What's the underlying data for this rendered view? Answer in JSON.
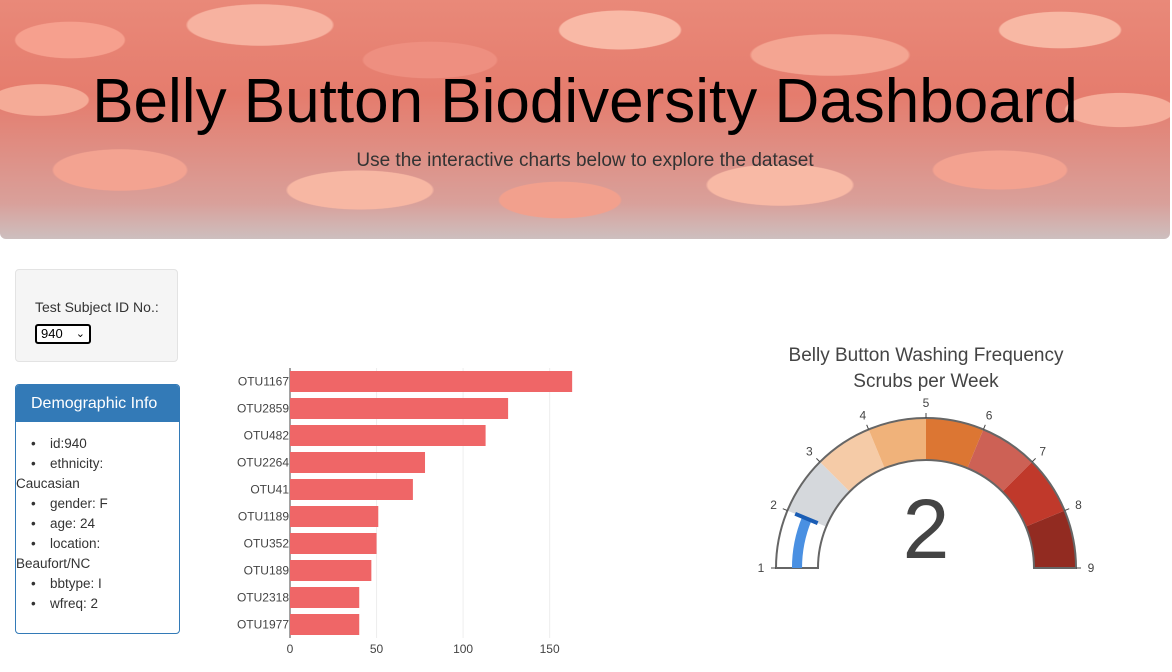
{
  "header": {
    "title": "Belly Button Biodiversity Dashboard",
    "subtitle": "Use the interactive charts below to explore the dataset"
  },
  "selector": {
    "label": "Test Subject ID No.:",
    "selected": "940"
  },
  "demographics": {
    "title": "Demographic Info",
    "items": [
      {
        "key": "id",
        "value": "940",
        "text1": "id:940",
        "text2": ""
      },
      {
        "key": "ethnicity",
        "text1": "ethnicity:",
        "text2": "Caucasian"
      },
      {
        "key": "gender",
        "text1": "gender: F",
        "text2": ""
      },
      {
        "key": "age",
        "text1": "age: 24",
        "text2": ""
      },
      {
        "key": "location",
        "text1": "location:",
        "text2": "Beaufort/NC"
      },
      {
        "key": "bbtype",
        "text1": "bbtype: I",
        "text2": ""
      },
      {
        "key": "wfreq",
        "text1": "wfreq: 2",
        "text2": ""
      }
    ]
  },
  "chart_data": [
    {
      "type": "bar",
      "orientation": "horizontal",
      "categories": [
        "OTU1167",
        "OTU2859",
        "OTU482",
        "OTU2264",
        "OTU41",
        "OTU1189",
        "OTU352",
        "OTU189",
        "OTU2318",
        "OTU1977"
      ],
      "values": [
        163,
        126,
        113,
        78,
        71,
        51,
        50,
        47,
        40,
        40
      ],
      "xticks": [
        0,
        50,
        100,
        150
      ],
      "xlim": [
        0,
        171
      ],
      "color": "#ef6667",
      "grid": true
    },
    {
      "type": "gauge",
      "title_line1": "Belly Button Washing Frequency",
      "title_line2": "Scrubs per Week",
      "value": 2,
      "value_label": "2",
      "range": [
        1,
        9
      ],
      "ticks": [
        "1",
        "2",
        "3",
        "4",
        "5",
        "6",
        "7",
        "8",
        "9"
      ],
      "steps": [
        {
          "range": [
            1,
            2
          ],
          "color": "#ffffff"
        },
        {
          "range": [
            2,
            3
          ],
          "color": "#d5d8dc"
        },
        {
          "range": [
            3,
            4
          ],
          "color": "#f5cba7"
        },
        {
          "range": [
            4,
            5
          ],
          "color": "#f0b27a"
        },
        {
          "range": [
            5,
            6
          ],
          "color": "#dc7633"
        },
        {
          "range": [
            6,
            7
          ],
          "color": "#cd6155"
        },
        {
          "range": [
            7,
            8
          ],
          "color": "#c0392b"
        },
        {
          "range": [
            8,
            9
          ],
          "color": "#922b21"
        }
      ],
      "bar_color": "#4a90e2",
      "threshold": {
        "value": 2,
        "color": "#1a5db5"
      }
    }
  ]
}
